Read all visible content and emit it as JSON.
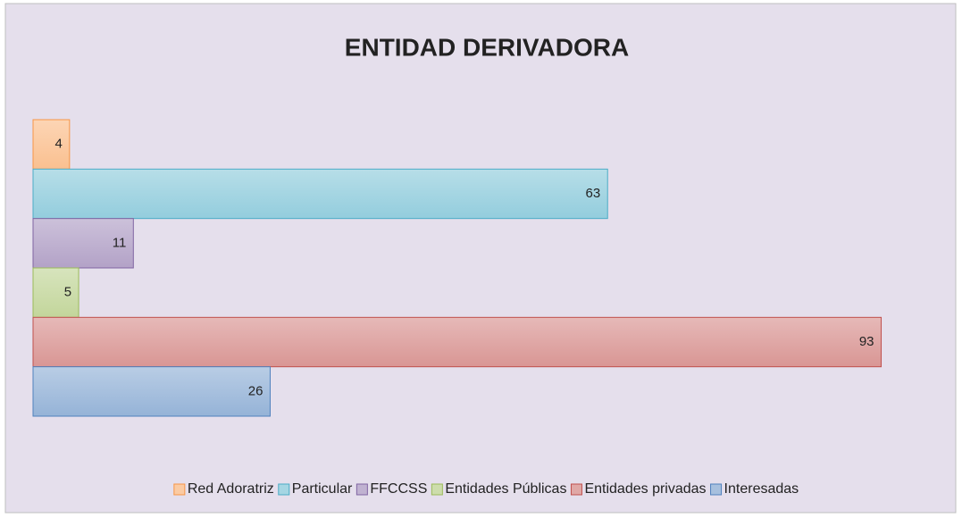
{
  "chart_data": {
    "type": "bar",
    "orientation": "horizontal",
    "title": "ENTIDAD DERIVADORA",
    "categories": [
      null
    ],
    "series": [
      {
        "name": "Red Adoratriz",
        "color": "#f79646",
        "values": [
          4
        ]
      },
      {
        "name": "Particular",
        "color": "#4bacc6",
        "values": [
          63
        ]
      },
      {
        "name": "FFCCSS",
        "color": "#8064a2",
        "values": [
          11
        ]
      },
      {
        "name": "Entidades Públicas",
        "color": "#9bbb59",
        "values": [
          5
        ]
      },
      {
        "name": "Entidades privadas",
        "color": "#c0504d",
        "values": [
          93
        ]
      },
      {
        "name": "Interesadas",
        "color": "#4f81bd",
        "values": [
          26
        ]
      }
    ],
    "xlim": [
      0,
      100
    ],
    "legend": "bottom"
  }
}
